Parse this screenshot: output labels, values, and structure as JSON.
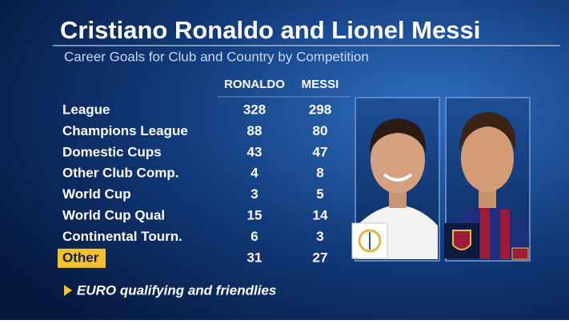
{
  "header": {
    "title": "Cristiano Ronaldo and Lionel Messi",
    "subtitle": "Career Goals for Club and Country by Competition"
  },
  "table": {
    "columns": [
      "RONALDO",
      "MESSI"
    ],
    "rows": [
      [
        "League",
        328,
        298
      ],
      [
        "Champions League",
        88,
        80
      ],
      [
        "Domestic Cups",
        43,
        47
      ],
      [
        "Other Club Comp.",
        4,
        8
      ],
      [
        "World Cup",
        3,
        5
      ],
      [
        "World Cup Qual",
        15,
        14
      ],
      [
        "Continental Tourn.",
        6,
        3
      ],
      [
        "Other",
        31,
        27
      ]
    ],
    "highlight_row": 7
  },
  "footnote": "EURO qualifying and friendlies"
}
